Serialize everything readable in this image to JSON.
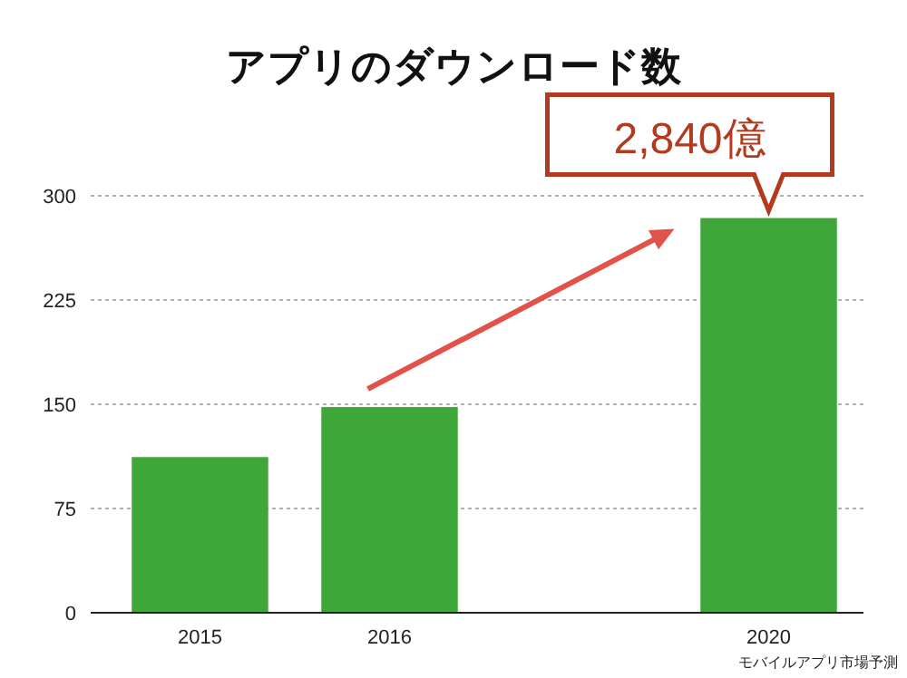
{
  "chart_data": {
    "type": "bar",
    "title": "アプリのダウンロード数",
    "categories": [
      "2015",
      "2016",
      null,
      "2020"
    ],
    "values": [
      112,
      148,
      null,
      284
    ],
    "color": "#3fa63a",
    "ylim": [
      0,
      300
    ],
    "yticks": [
      0,
      75,
      150,
      225,
      300
    ],
    "grid": "y",
    "annotations": [
      {
        "text": "2,840億",
        "x": "2020",
        "y": 284
      },
      "モバイルアプリ市場予測"
    ]
  }
}
